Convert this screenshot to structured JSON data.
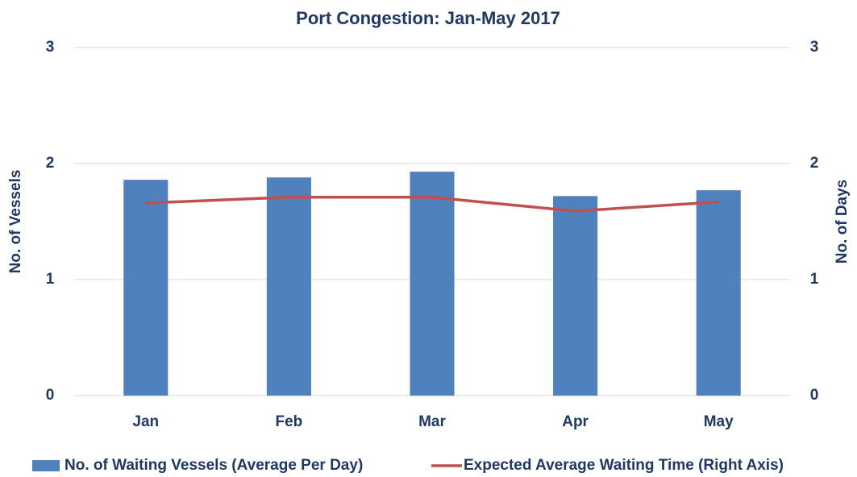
{
  "chart_data": {
    "type": "bar",
    "title": "Port Congestion: Jan-May 2017",
    "categories": [
      "Jan",
      "Feb",
      "Mar",
      "Apr",
      "May"
    ],
    "series": [
      {
        "name": "No. of Waiting Vessels (Average Per Day)",
        "type": "bar",
        "color": "#4f81bd",
        "values": [
          1.86,
          1.88,
          1.93,
          1.72,
          1.77
        ]
      },
      {
        "name": "Expected Average Waiting Time (Right Axis)",
        "type": "line",
        "axis": "y2",
        "color": "#c0504d",
        "values": [
          1.66,
          1.71,
          1.71,
          1.59,
          1.67
        ]
      }
    ],
    "ylabel": "No. of Vessels",
    "y2label": "No. of Days",
    "ylim": [
      0,
      3
    ],
    "yticks": [
      0,
      1,
      2,
      3
    ],
    "y2lim": [
      0,
      3
    ],
    "y2ticks": [
      0,
      1,
      2,
      3
    ],
    "grid": true,
    "legend": "bottom"
  }
}
